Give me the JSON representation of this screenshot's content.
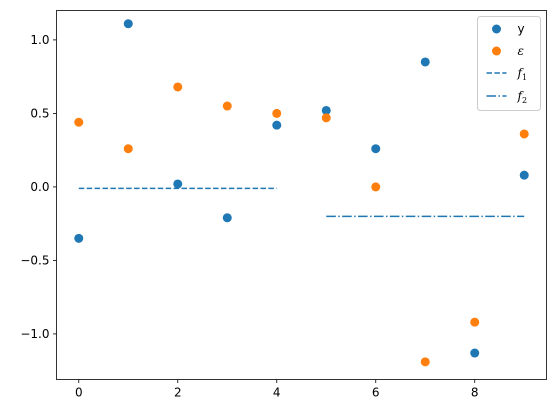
{
  "chart_data": {
    "type": "scatter",
    "title": "",
    "xlabel": "",
    "ylabel": "",
    "xlim": [
      -0.45,
      9.45
    ],
    "ylim": [
      -1.31,
      1.2
    ],
    "xticks": [
      0,
      2,
      4,
      6,
      8
    ],
    "xtick_labels": [
      "0",
      "2",
      "4",
      "6",
      "8"
    ],
    "yticks": [
      -1.0,
      -0.5,
      0.0,
      0.5,
      1.0
    ],
    "ytick_labels": [
      "−1.0",
      "−0.5",
      "0.0",
      "0.5",
      "1.0"
    ],
    "grid": false,
    "legend_placement": "upper-right",
    "series": [
      {
        "name": "y",
        "kind": "scatter",
        "color": "#1f77b4",
        "x": [
          0,
          1,
          2,
          3,
          4,
          5,
          6,
          7,
          8,
          9
        ],
        "y": [
          -0.35,
          1.11,
          0.02,
          -0.21,
          0.42,
          0.52,
          0.26,
          0.85,
          -1.13,
          0.08
        ]
      },
      {
        "name": "ε",
        "kind": "scatter",
        "color": "#ff7f0e",
        "x": [
          0,
          1,
          2,
          3,
          4,
          5,
          6,
          7,
          8,
          9
        ],
        "y": [
          0.44,
          0.26,
          0.68,
          0.55,
          0.5,
          0.47,
          0.0,
          -1.19,
          -0.92,
          0.36
        ]
      },
      {
        "name": "f",
        "name_subscript": "1",
        "kind": "line",
        "linestyle": "dashed",
        "color": "#1f77b4",
        "x": [
          0,
          4
        ],
        "y": [
          -0.01,
          -0.01
        ]
      },
      {
        "name": "f",
        "name_subscript": "2",
        "kind": "line",
        "linestyle": "dashdot",
        "color": "#1f77b4",
        "x": [
          5,
          9
        ],
        "y": [
          -0.2,
          -0.2
        ]
      }
    ]
  }
}
